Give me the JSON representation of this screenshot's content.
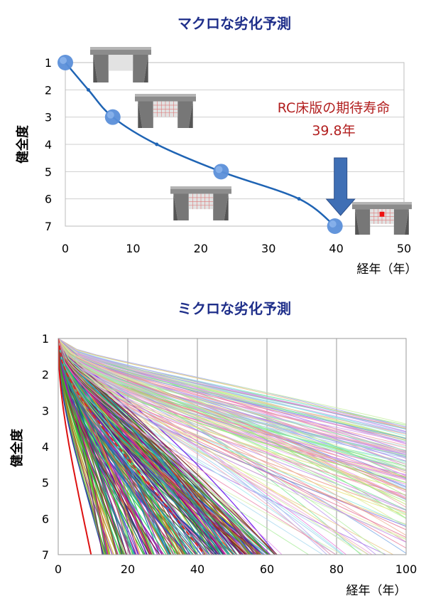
{
  "chart_data": [
    {
      "type": "line",
      "title": "マクロな劣化予測",
      "xlabel": "経年（年）",
      "ylabel": "健全度",
      "xlim": [
        0,
        50
      ],
      "ylim": [
        1,
        7
      ],
      "y_inverted": true,
      "x_ticks": [
        "0",
        "10",
        "20",
        "30",
        "40",
        "50"
      ],
      "y_ticks": [
        "1",
        "2",
        "3",
        "4",
        "5",
        "6",
        "7"
      ],
      "grid": "horizontal",
      "series": [
        {
          "color": "#1f64b4",
          "points": [
            [
              0,
              1
            ],
            [
              3.4,
              2
            ],
            [
              7,
              3
            ],
            [
              13.5,
              4
            ],
            [
              23,
              5
            ],
            [
              34.5,
              6
            ],
            [
              39.8,
              7
            ]
          ]
        }
      ],
      "highlight_points": [
        [
          0,
          1
        ],
        [
          7,
          3
        ],
        [
          23,
          5
        ],
        [
          39.8,
          7
        ]
      ],
      "annotation": {
        "line1": "RC床版の期待寿命",
        "line2": "39.8年",
        "x": 39.8
      },
      "annotation_color": "#b21f1f",
      "arrow_color": "#3f6fb5",
      "icons": [
        "bridge-deck-icon",
        "bridge-deck-icon",
        "bridge-deck-icon",
        "bridge-deck-icon"
      ]
    },
    {
      "type": "line",
      "title": "ミクロな劣化予測",
      "xlabel": "経年（年）",
      "ylabel": "健全度",
      "xlim": [
        0,
        100
      ],
      "ylim": [
        1,
        7
      ],
      "y_inverted": true,
      "x_ticks": [
        "0",
        "20",
        "40",
        "60",
        "80",
        "100"
      ],
      "y_ticks": [
        "1",
        "2",
        "3",
        "4",
        "5",
        "6",
        "7"
      ],
      "grid": "vertical",
      "series_note_count": 380,
      "highlight_series": {
        "solid": {
          "color": "#dd1111",
          "life": 9
        },
        "dashed": {
          "color": "#e02020",
          "life": 40
        }
      }
    }
  ]
}
